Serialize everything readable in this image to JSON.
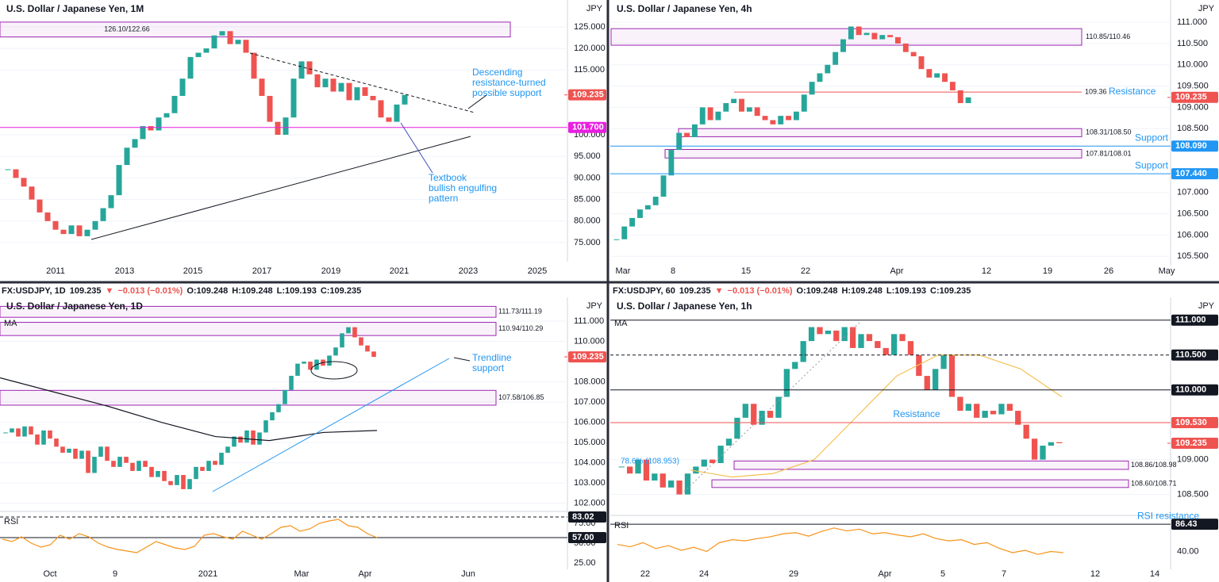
{
  "panels": [
    {
      "title": "U.S. Dollar / Japanese Yen, 1M",
      "unit": "JPY",
      "ylim": [
        70.6,
        130.3
      ],
      "yticks": [
        {
          "value": 125,
          "label": "125.000"
        },
        {
          "value": 120,
          "label": "120.000"
        },
        {
          "value": 115,
          "label": "115.000"
        },
        {
          "value": 100,
          "label": "100.000"
        },
        {
          "value": 95,
          "label": "95.000"
        },
        {
          "value": 90,
          "label": "90.000"
        },
        {
          "value": 85,
          "label": "85.000"
        },
        {
          "value": 80,
          "label": "80.000"
        },
        {
          "value": 75,
          "label": "75.000"
        }
      ],
      "xticks": [
        "2011",
        "2013",
        "2015",
        "2017",
        "2019",
        "2021",
        "2023",
        "2025"
      ],
      "closes": [
        92,
        90,
        88,
        85,
        82,
        80,
        78,
        77,
        79,
        76.5,
        78,
        80,
        83,
        86,
        93,
        97,
        99,
        102,
        101,
        104,
        105,
        109,
        113,
        118,
        119,
        120,
        123,
        124,
        121,
        122,
        119,
        113,
        109,
        103,
        100,
        104,
        113,
        117,
        114,
        111,
        113,
        110,
        112,
        108,
        111,
        109,
        108,
        104,
        103,
        107,
        109.235
      ],
      "zones": [
        {
          "top": 126.1,
          "bottom": 122.66,
          "label": "126.10/122.66"
        }
      ],
      "levels": [
        {
          "value": 109.235,
          "label": "109.235",
          "color": "#ef5350",
          "style": "none"
        },
        {
          "value": 101.7,
          "label": "101.700",
          "color": "#e91ee0",
          "style": "solid"
        }
      ],
      "annotations": [
        [
          "Descending",
          "resistance-turned",
          "possible support"
        ],
        [
          "Textbook",
          "bullish engulfing",
          "pattern"
        ]
      ]
    },
    {
      "title": "U.S. Dollar / Japanese Yen, 4h",
      "unit": "JPY",
      "ylim": [
        105.28,
        111.43
      ],
      "yticks": [
        {
          "value": 111,
          "label": "111.000"
        },
        {
          "value": 110.5,
          "label": "110.500"
        },
        {
          "value": 110,
          "label": "110.000"
        },
        {
          "value": 109.5,
          "label": "109.500"
        },
        {
          "value": 109,
          "label": "109.000"
        },
        {
          "value": 108.5,
          "label": "108.500"
        },
        {
          "value": 107,
          "label": "107.000"
        },
        {
          "value": 106.5,
          "label": "106.500"
        },
        {
          "value": 106,
          "label": "106.000"
        },
        {
          "value": 105.5,
          "label": "105.500"
        }
      ],
      "xticks": [
        "Mar",
        "8",
        "15",
        "22",
        "Apr",
        "12",
        "19",
        "26",
        "May"
      ],
      "closes": [
        105.9,
        106.2,
        106.4,
        106.6,
        106.7,
        106.9,
        107.4,
        108,
        108.4,
        108.3,
        108.6,
        109,
        108.7,
        108.9,
        109.1,
        109.2,
        108.9,
        109,
        108.8,
        108.7,
        108.6,
        108.8,
        108.7,
        108.9,
        109.3,
        109.6,
        109.8,
        110,
        110.3,
        110.6,
        110.9,
        110.7,
        110.75,
        110.6,
        110.7,
        110.65,
        110.5,
        110.3,
        110.2,
        109.9,
        109.7,
        109.8,
        109.6,
        109.4,
        109.1,
        109.235
      ],
      "zones": [
        {
          "top": 110.85,
          "bottom": 110.46,
          "label": "110.85/110.46"
        },
        {
          "top": 108.5,
          "bottom": 108.31,
          "label": "108.31/108.50"
        },
        {
          "top": 108.01,
          "bottom": 107.81,
          "label": "107.81/108.01"
        }
      ],
      "lines": [
        {
          "value": 109.36,
          "label": "109.36",
          "note": "Resistance",
          "color": "#ef5350"
        }
      ],
      "levels": [
        {
          "value": 109.235,
          "label": "109.235",
          "color": "#ef5350",
          "style": "none"
        },
        {
          "value": 108.09,
          "label": "108.090",
          "color": "#2196f3",
          "style": "solid",
          "note": "Support"
        },
        {
          "value": 107.44,
          "label": "107.440",
          "color": "#2196f3",
          "style": "solid",
          "note": "Support"
        }
      ]
    },
    {
      "title": "U.S. Dollar / Japanese Yen, 1D",
      "unit": "JPY",
      "ma_label": "MA",
      "ylim": [
        101.6,
        111.98
      ],
      "header": {
        "symbol": "FX:USDJPY, 1D",
        "last": "109.235",
        "arrow": "▼",
        "change": "−0.013 (−0.01%)",
        "open": "O:109.248",
        "high": "H:109.248",
        "low": "L:109.193",
        "close": "C:109.235"
      },
      "yticks": [
        {
          "value": 111,
          "label": "111.000"
        },
        {
          "value": 110,
          "label": "110.000"
        },
        {
          "value": 108,
          "label": "108.000"
        },
        {
          "value": 107,
          "label": "107.000"
        },
        {
          "value": 106,
          "label": "106.000"
        },
        {
          "value": 105,
          "label": "105.000"
        },
        {
          "value": 104,
          "label": "104.000"
        },
        {
          "value": 103,
          "label": "103.000"
        },
        {
          "value": 102,
          "label": "102.000"
        }
      ],
      "xticks": [
        "Oct",
        "9",
        "2021",
        "Mar",
        "Apr",
        "Jun"
      ],
      "closes": [
        105.5,
        105.7,
        105.3,
        105.8,
        105.4,
        104.9,
        105.6,
        105.2,
        104.8,
        104.5,
        104.7,
        104.2,
        104.6,
        103.5,
        104.3,
        104.8,
        104.1,
        103.8,
        104.3,
        104,
        103.6,
        104.1,
        103.8,
        103.3,
        103.6,
        103.1,
        102.9,
        103.4,
        102.7,
        103.2,
        103.8,
        103.6,
        104.1,
        103.9,
        104.5,
        104.8,
        105.3,
        105,
        105.6,
        104.9,
        105.5,
        106.1,
        106.5,
        106.9,
        107.6,
        108.3,
        108.9,
        109,
        108.6,
        109.1,
        108.8,
        109.3,
        109.7,
        110.4,
        110.7,
        110.2,
        109.8,
        109.5,
        109.235
      ],
      "ma": {
        "color": "#131722",
        "values": [
          108.2,
          107.5,
          106.8,
          106,
          105.3,
          105.1,
          105.5,
          105.6
        ]
      },
      "zones": [
        {
          "top": 111.73,
          "bottom": 111.19,
          "label": "111.73/111.19"
        },
        {
          "top": 110.94,
          "bottom": 110.29,
          "label": "110.94/110.29"
        },
        {
          "top": 107.58,
          "bottom": 106.85,
          "label": "107.58/106.85"
        }
      ],
      "levels": [
        {
          "value": 109.235,
          "label": "109.235",
          "color": "#ef5350",
          "style": "none"
        }
      ],
      "annotations": [
        [
          "Trendline",
          "support"
        ]
      ],
      "rsi": {
        "label": "RSI",
        "ylim": [
          17,
          90
        ],
        "yticks": [
          {
            "value": 75,
            "label": "75.00"
          },
          {
            "value": 50,
            "label": "50.00"
          },
          {
            "value": 25,
            "label": "25.00"
          }
        ],
        "levels": [
          {
            "value": 83.02,
            "label": "83.02",
            "color": "#131722",
            "style": "dashed"
          },
          {
            "value": 57,
            "label": "57.00",
            "color": "#131722",
            "style": "solid"
          }
        ],
        "values": [
          55,
          52,
          58,
          50,
          45,
          48,
          60,
          55,
          62,
          58,
          50,
          45,
          42,
          40,
          38,
          45,
          52,
          48,
          44,
          42,
          46,
          60,
          62,
          58,
          55,
          65,
          60,
          55,
          62,
          70,
          72,
          65,
          68,
          75,
          78,
          80,
          72,
          70,
          62,
          57
        ]
      }
    },
    {
      "title": "U.S. Dollar / Japanese Yen, 1h",
      "unit": "JPY",
      "ma_label": "MA",
      "ylim": [
        108.2,
        111.27
      ],
      "header": {
        "symbol": "FX:USDJPY, 60",
        "last": "109.235",
        "arrow": "▼",
        "change": "−0.013 (−0.01%)",
        "open": "O:109.248",
        "high": "H:109.248",
        "low": "L:109.193",
        "close": "C:109.235"
      },
      "yticks": [
        {
          "value": 109,
          "label": "109.000"
        },
        {
          "value": 108.5,
          "label": "108.500"
        }
      ],
      "xticks": [
        "22",
        "24",
        "29",
        "Apr",
        "5",
        "7",
        "12",
        "14"
      ],
      "closes": [
        108.9,
        108.8,
        109,
        108.7,
        108.8,
        108.6,
        108.7,
        108.5,
        108.8,
        108.9,
        109,
        108.95,
        109.2,
        109.3,
        109.6,
        109.8,
        109.5,
        109.7,
        109.6,
        109.9,
        110.3,
        110.4,
        110.7,
        110.9,
        110.8,
        110.85,
        110.7,
        110.9,
        110.6,
        110.8,
        110.7,
        110.6,
        110.5,
        110.8,
        110.7,
        110.5,
        110.2,
        110,
        110.3,
        110.5,
        109.9,
        109.7,
        109.8,
        109.6,
        109.7,
        109.65,
        109.8,
        109.7,
        109.5,
        109.3,
        109,
        109.2,
        109.25,
        109.235
      ],
      "ma": {
        "color": "#f5c152",
        "values": [
          108.85,
          108.75,
          108.8,
          109,
          109.6,
          110.2,
          110.5,
          110.5,
          110.3,
          109.9
        ]
      },
      "zones": [
        {
          "top": 108.98,
          "bottom": 108.86,
          "label": "108.86/108.98"
        },
        {
          "top": 108.71,
          "bottom": 108.6,
          "label": "108.60/108.71"
        }
      ],
      "fib": "78.6% (108.953)",
      "levels": [
        {
          "value": 111,
          "label": "111.000",
          "color": "#131722",
          "style": "solid"
        },
        {
          "value": 110.5,
          "label": "110.500",
          "color": "#131722",
          "style": "dashed"
        },
        {
          "value": 110,
          "label": "110.000",
          "color": "#131722",
          "style": "solid"
        },
        {
          "value": 109.53,
          "label": "109.530",
          "color": "#ef5350",
          "style": "solid",
          "note": "Resistance"
        },
        {
          "value": 109.235,
          "label": "109.235",
          "color": "#ef5350",
          "style": "none"
        }
      ],
      "rsi": {
        "label": "RSI",
        "ylim": [
          9.6,
          101.4
        ],
        "yticks": [
          {
            "value": 40,
            "label": "40.00"
          }
        ],
        "levels": [
          {
            "value": 86.43,
            "label": "86.43",
            "color": "#131722",
            "style": "solid",
            "note": "RSI resistance"
          }
        ],
        "values": [
          52,
          48,
          55,
          45,
          50,
          42,
          47,
          40,
          55,
          60,
          58,
          62,
          65,
          70,
          72,
          66,
          74,
          80,
          75,
          78,
          70,
          72,
          68,
          65,
          70,
          62,
          58,
          60,
          52,
          55,
          45,
          38,
          42,
          35,
          40,
          38
        ]
      }
    }
  ]
}
